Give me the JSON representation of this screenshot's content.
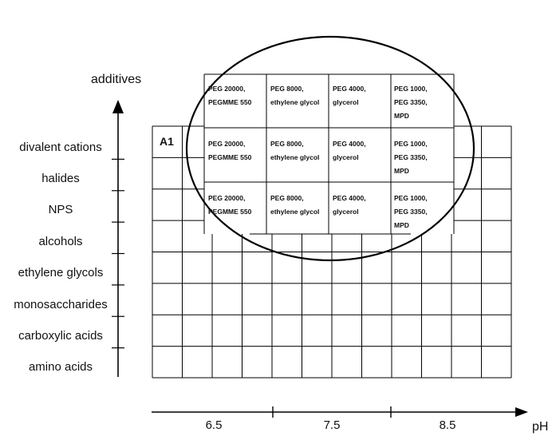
{
  "diagram": {
    "y_axis_title": "additives",
    "x_axis_title": "pH",
    "y_categories": [
      "divalent cations",
      "halides",
      "NPS",
      "alcohols",
      "ethylene glycols",
      "monosaccharides",
      "carboxylic acids",
      "amino acids"
    ],
    "x_ticks": [
      "6.5",
      "7.5",
      "8.5"
    ],
    "corner_label": "A1",
    "grid": {
      "rows": 8,
      "columns": 12
    },
    "inset_table": {
      "rows": [
        [
          "PEG 20000,\nPEGMME 550",
          "PEG 8000,\nethylene glycol",
          "PEG 4000,\nglycerol",
          "PEG 1000,\nPEG 3350,\nMPD"
        ],
        [
          "PEG 20000,\nPEGMME 550",
          "PEG 8000,\nethylene glycol",
          "PEG 4000,\nglycerol",
          "PEG 1000,\nPEG 3350,\nMPD"
        ],
        [
          "PEG 20000,\nPEGMME 550",
          "PEG 8000,\nethylene glycol",
          "PEG 4000,\nglycerol",
          "PEG 1000,\nPEG 3350,\nMPD"
        ]
      ]
    }
  }
}
